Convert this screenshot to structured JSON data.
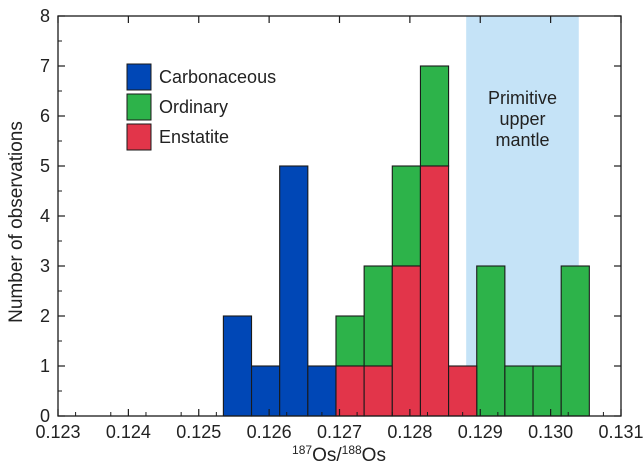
{
  "chart_data": {
    "type": "bar",
    "subtype": "stacked-histogram",
    "xlabel_parts": [
      "187",
      "Os/",
      "188",
      "Os"
    ],
    "ylabel": "Number of observations",
    "xlim": [
      0.123,
      0.131
    ],
    "ylim": [
      0,
      8
    ],
    "x_ticks": [
      "0.123",
      "0.124",
      "0.125",
      "0.126",
      "0.127",
      "0.128",
      "0.129",
      "0.130",
      "0.131"
    ],
    "y_ticks": [
      "0",
      "1",
      "2",
      "3",
      "4",
      "5",
      "6",
      "7",
      "8"
    ],
    "grid": false,
    "legend_position": "top-left",
    "series": [
      {
        "name": "Carbonaceous",
        "color": "#0047b6",
        "bins": [
          {
            "x0": 0.12535,
            "x1": 0.12575,
            "count": 2
          },
          {
            "x0": 0.12575,
            "x1": 0.12615,
            "count": 1
          },
          {
            "x0": 0.12615,
            "x1": 0.12655,
            "count": 5
          },
          {
            "x0": 0.12655,
            "x1": 0.12695,
            "count": 1
          }
        ]
      },
      {
        "name": "Ordinary",
        "color": "#2db34a",
        "bins": [
          {
            "x0": 0.12695,
            "x1": 0.12735,
            "base": 1,
            "count": 1
          },
          {
            "x0": 0.12735,
            "x1": 0.12775,
            "base": 1,
            "count": 2
          },
          {
            "x0": 0.12775,
            "x1": 0.12815,
            "base": 3,
            "count": 2
          },
          {
            "x0": 0.12815,
            "x1": 0.12855,
            "base": 5,
            "count": 2
          },
          {
            "x0": 0.12895,
            "x1": 0.12935,
            "base": 0,
            "count": 3
          },
          {
            "x0": 0.12935,
            "x1": 0.12975,
            "base": 0,
            "count": 1
          },
          {
            "x0": 0.12975,
            "x1": 0.13015,
            "base": 0,
            "count": 1
          },
          {
            "x0": 0.13015,
            "x1": 0.13055,
            "base": 0,
            "count": 3
          }
        ]
      },
      {
        "name": "Enstatite",
        "color": "#e2354a",
        "bins": [
          {
            "x0": 0.12695,
            "x1": 0.12735,
            "count": 1
          },
          {
            "x0": 0.12735,
            "x1": 0.12775,
            "count": 1
          },
          {
            "x0": 0.12775,
            "x1": 0.12815,
            "count": 3
          },
          {
            "x0": 0.12815,
            "x1": 0.12855,
            "count": 5
          },
          {
            "x0": 0.12855,
            "x1": 0.12895,
            "count": 1
          }
        ]
      }
    ],
    "region": {
      "label_lines": [
        "Primitive",
        "upper",
        "mantle"
      ],
      "x_range": [
        0.1288,
        0.1304
      ],
      "color": "#c5e3f7"
    }
  }
}
